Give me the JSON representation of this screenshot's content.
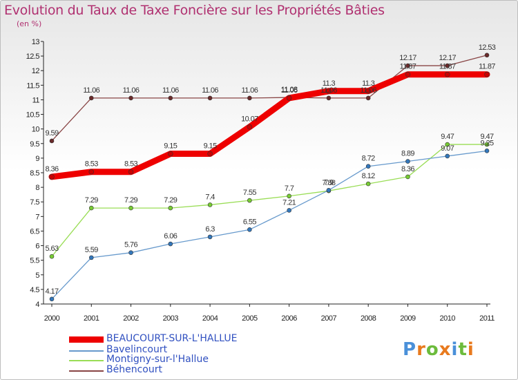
{
  "chart_data": {
    "type": "line",
    "title": "Evolution du Taux de Taxe Foncière sur les Propriétés Bâties",
    "subtitle": "(en %)",
    "x": [
      "2000",
      "2001",
      "2002",
      "2003",
      "2004",
      "2005",
      "2006",
      "2007",
      "2008",
      "2009",
      "2010",
      "2011"
    ],
    "ylim": [
      4,
      13
    ],
    "yticks": [
      "4",
      "4.5",
      "5",
      "5.5",
      "6",
      "6.5",
      "7",
      "7.5",
      "8",
      "8.5",
      "9",
      "9.5",
      "10",
      "10.5",
      "11",
      "11.5",
      "12",
      "12.5",
      "13"
    ],
    "grid": false,
    "legend_position": "bottom-left",
    "series": [
      {
        "name": "BEAUCOURT-SUR-L'HALLUE",
        "color": "#ee0000",
        "values": [
          8.36,
          8.53,
          8.53,
          9.15,
          9.15,
          10.07,
          11.06,
          11.3,
          11.3,
          11.87,
          11.87,
          11.87
        ],
        "labels": [
          "8.36",
          "8.53",
          "8.53",
          "9.15",
          "9.15",
          "10.07",
          "11.06",
          "11.3",
          "11.3",
          "11.87",
          "11.87",
          "11.87"
        ]
      },
      {
        "name": "Bavelincourt",
        "color": "#6699cc",
        "values": [
          4.17,
          5.59,
          5.76,
          6.06,
          6.3,
          6.55,
          7.21,
          7.9,
          8.72,
          8.89,
          9.07,
          9.25
        ],
        "labels": [
          "4.17",
          "5.59",
          "5.76",
          "6.06",
          "6.3",
          "6.55",
          "7.21",
          "7.9",
          "8.72",
          "8.89",
          "9.07",
          "9.25"
        ]
      },
      {
        "name": "Montigny-sur-l'Hallue",
        "color": "#99dd55",
        "values": [
          5.63,
          7.29,
          7.29,
          7.29,
          7.4,
          7.55,
          7.7,
          7.88,
          8.12,
          8.36,
          9.47,
          9.47
        ],
        "labels": [
          "5.63",
          "7.29",
          "7.29",
          "7.29",
          "7.4",
          "7.55",
          "7.7",
          "7.88",
          "8.12",
          "8.36",
          "9.47",
          "9.47"
        ]
      },
      {
        "name": "Béhencourt",
        "color": "#884444",
        "values": [
          9.59,
          11.06,
          11.06,
          11.06,
          11.06,
          11.06,
          11.08,
          11.06,
          11.06,
          12.17,
          12.17,
          12.53
        ],
        "labels": [
          "9.59",
          "11.06",
          "11.06",
          "11.06",
          "11.06",
          "11.06",
          "11.08",
          "11.06",
          "11.06",
          "12.17",
          "12.17",
          "12.53"
        ]
      }
    ]
  },
  "logo": {
    "text": "Proxiti",
    "letters": [
      "P",
      "r",
      "o",
      "x",
      "i",
      "t",
      "i"
    ],
    "colors": [
      "#4a90d9",
      "#e87a1e",
      "#6cbb3c",
      "#e87a1e",
      "#4a90d9",
      "#6cbb3c",
      "#e87a1e"
    ]
  }
}
